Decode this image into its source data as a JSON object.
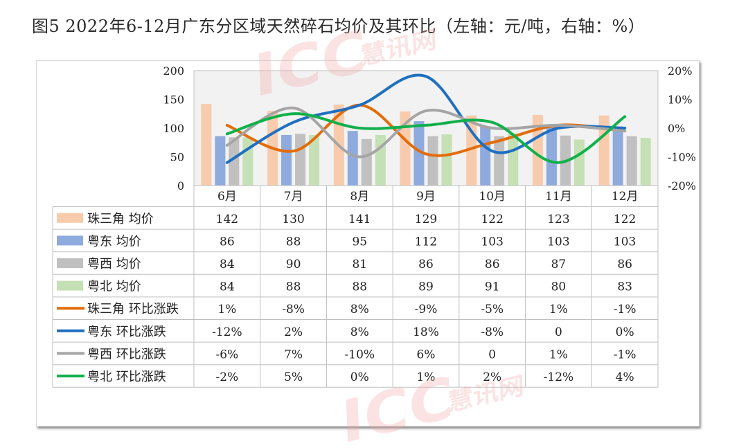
{
  "title": "图5 2022年6-12月广东分区域天然碎石均价及其环比（左轴：元/吨，右轴：%）",
  "watermark": {
    "brand": "ICC",
    "text": "慧讯网"
  },
  "colors": {
    "prd_avg": "#F8CBAD",
    "east_avg": "#8FAADC",
    "west_avg": "#C0C0C0",
    "north_avg": "#C5E0B4",
    "prd_chg": "#E36C0A",
    "east_chg": "#1F6FC1",
    "west_chg": "#A5A5A5",
    "north_chg": "#11B04B",
    "watermark": "#F2A9A9"
  },
  "chart_data": {
    "type": "bar+line",
    "categories": [
      "6月",
      "7月",
      "8月",
      "9月",
      "10月",
      "11月",
      "12月"
    ],
    "y_left": {
      "ticks": [
        "200",
        "150",
        "100",
        "50",
        "0"
      ],
      "range": [
        0,
        200
      ]
    },
    "y_right": {
      "ticks": [
        "20%",
        "10%",
        "0%",
        "-10%",
        "-20%"
      ],
      "range": [
        -20,
        20
      ]
    },
    "bar_series": [
      {
        "name": "珠三角 均价",
        "values": [
          142,
          130,
          141,
          129,
          122,
          123,
          122
        ]
      },
      {
        "name": "粤东 均价",
        "values": [
          86,
          88,
          95,
          112,
          103,
          103,
          103
        ]
      },
      {
        "name": "粤西 均价",
        "values": [
          84,
          90,
          81,
          86,
          86,
          87,
          86
        ]
      },
      {
        "name": "粤北 均价",
        "values": [
          84,
          88,
          88,
          89,
          91,
          80,
          83
        ]
      }
    ],
    "line_series": [
      {
        "name": "珠三角 环比涨跌",
        "values": [
          1,
          -8,
          8,
          -9,
          -5,
          1,
          -1
        ],
        "labels": [
          "1%",
          "-8%",
          "8%",
          "-9%",
          "-5%",
          "1%",
          "-1%"
        ]
      },
      {
        "name": "粤东 环比涨跌",
        "values": [
          -12,
          2,
          8,
          18,
          -8,
          0,
          0
        ],
        "labels": [
          "-12%",
          "2%",
          "8%",
          "18%",
          "-8%",
          "0",
          "0%"
        ]
      },
      {
        "name": "粤西 环比涨跌",
        "values": [
          -6,
          7,
          -10,
          6,
          0,
          1,
          -1
        ],
        "labels": [
          "-6%",
          "7%",
          "-10%",
          "6%",
          "0",
          "1%",
          "-1%"
        ]
      },
      {
        "name": "粤北 环比涨跌",
        "values": [
          -2,
          5,
          0,
          1,
          2,
          -12,
          4
        ],
        "labels": [
          "-2%",
          "5%",
          "0%",
          "1%",
          "2%",
          "-12%",
          "4%"
        ]
      }
    ]
  }
}
